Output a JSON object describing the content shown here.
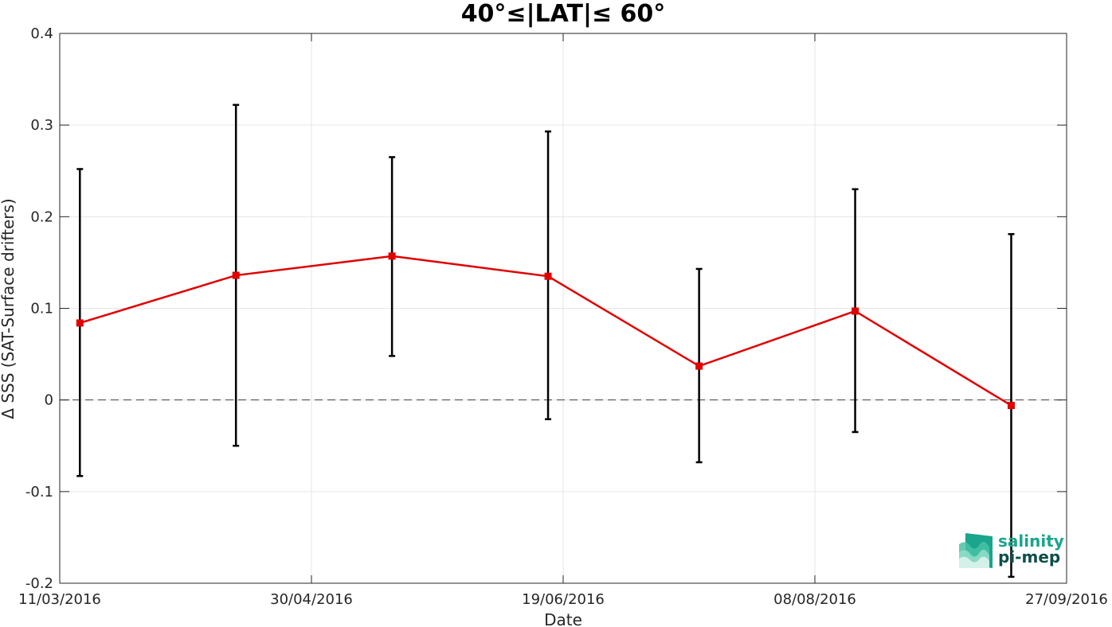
{
  "chart_data": {
    "type": "line",
    "title": "40°≤|LAT|≤ 60°",
    "xlabel": "Date",
    "ylabel": "Δ SSS (SAT-Surface drifters)",
    "xlim": [
      "2016-03-11",
      "2016-09-27"
    ],
    "ylim": [
      -0.2,
      0.4
    ],
    "x_ticks": [
      "2016-03-11",
      "2016-04-30",
      "2016-06-19",
      "2016-08-08",
      "2016-09-27"
    ],
    "x_tick_labels": [
      "11/03/2016",
      "30/04/2016",
      "19/06/2016",
      "08/08/2016",
      "27/09/2016"
    ],
    "y_ticks": [
      -0.2,
      -0.1,
      0,
      0.1,
      0.2,
      0.3,
      0.4
    ],
    "y_tick_labels": [
      "-0.2",
      "-0.1",
      "0",
      "0.1",
      "0.2",
      "0.3",
      "0.4"
    ],
    "grid": true,
    "reference_line": {
      "y": 0,
      "style": "dashed"
    },
    "series": [
      {
        "x": [
          "2016-03-15",
          "2016-04-15",
          "2016-05-16",
          "2016-06-16",
          "2016-07-16",
          "2016-08-16",
          "2016-09-16"
        ],
        "y": [
          0.084,
          0.136,
          0.157,
          0.135,
          0.037,
          0.097,
          -0.006
        ],
        "error_low": [
          -0.083,
          -0.05,
          0.048,
          -0.021,
          -0.068,
          -0.035,
          -0.193
        ],
        "error_high": [
          0.252,
          0.322,
          0.265,
          0.293,
          0.143,
          0.23,
          0.181
        ],
        "color": "#e00000",
        "errorbar_color": "#000000",
        "marker": "square"
      }
    ]
  },
  "logo": {
    "line1": "salinity",
    "line2": "pi-mep",
    "color_primary": "#1aa58c",
    "color_secondary": "#0f4f4a"
  }
}
